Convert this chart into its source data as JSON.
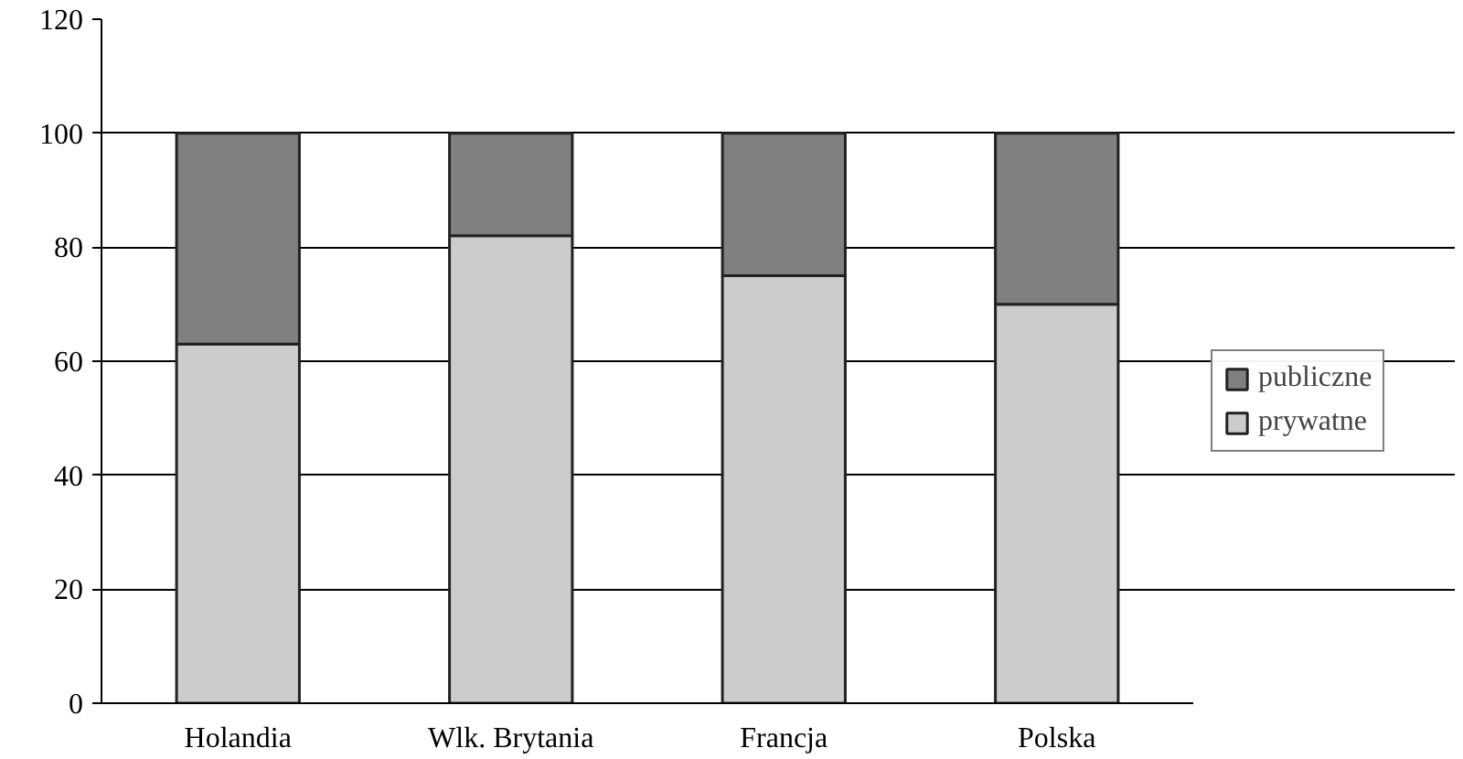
{
  "chart_data": {
    "type": "bar",
    "stacked": true,
    "categories": [
      "Holandia",
      "Wlk. Brytania",
      "Francja",
      "Polska"
    ],
    "series": [
      {
        "name": "prywatne",
        "color": "#cccccc",
        "values": [
          63,
          82,
          75,
          70
        ]
      },
      {
        "name": "publiczne",
        "color": "#808080",
        "values": [
          37,
          18,
          25,
          30
        ]
      }
    ],
    "ylim": [
      0,
      120
    ],
    "yticks": [
      0,
      20,
      40,
      60,
      80,
      100,
      120
    ],
    "grid": "y",
    "legend": "right"
  }
}
